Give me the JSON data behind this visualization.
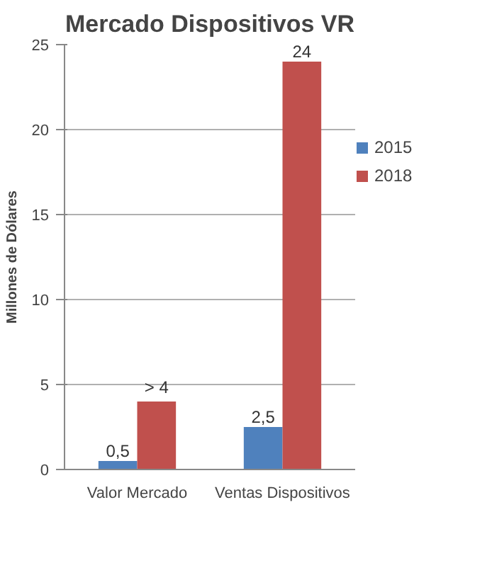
{
  "chart_data": {
    "type": "bar",
    "title": "Mercado Dispositivos VR",
    "ylabel": "Millones de Dólares",
    "categories": [
      "Valor Mercado",
      "Ventas Dispositivos"
    ],
    "series": [
      {
        "name": "2015",
        "color": "#4f81bd",
        "values": [
          0.5,
          2.5
        ],
        "value_labels": [
          "0,5",
          "2,5"
        ]
      },
      {
        "name": "2018",
        "color": "#c0504d",
        "values": [
          4,
          24
        ],
        "value_labels": [
          "> 4",
          "24"
        ]
      }
    ],
    "ylim": [
      0,
      25
    ],
    "yticks": [
      0,
      5,
      10,
      15,
      20,
      25
    ],
    "grid": "y",
    "legend": "right"
  }
}
